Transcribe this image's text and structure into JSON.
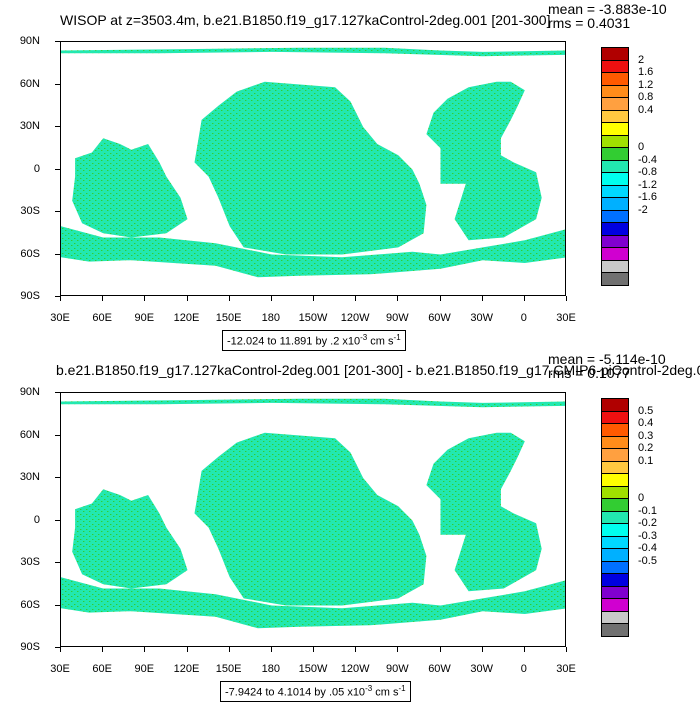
{
  "panels": [
    {
      "title": "WISOP at z=3503.4m, b.e21.B1850.f19_g17.127kaControl-2deg.001 [201-300]",
      "mean": "mean = -3.883e-10",
      "rms": "rms = 0.4031",
      "range_text": "-12.024 to 11.891 by .2 x10",
      "range_exp": "-3",
      "range_units": " cm s",
      "range_units_exp": "-1",
      "colorbar_labels": [
        "2",
        "1.6",
        "1.2",
        "0.8",
        "0.4",
        "0",
        "-0.4",
        "-0.8",
        "-1.2",
        "-1.6",
        "-2"
      ]
    },
    {
      "title": "b.e21.B1850.f19_g17.127kaControl-2deg.001 [201-300] - b.e21.B1850.f19_g17.CMIP6-piControl-2deg.0",
      "mean": "mean = -5.114e-10",
      "rms": "rms = 0.1077",
      "range_text": "-7.9424 to 4.1014 by .05 x10",
      "range_exp": "-3",
      "range_units": " cm s",
      "range_units_exp": "-1",
      "colorbar_labels": [
        "0.5",
        "0.4",
        "0.3",
        "0.2",
        "0.1",
        "0",
        "-0.1",
        "-0.2",
        "-0.3",
        "-0.4",
        "-0.5"
      ]
    }
  ],
  "lat_labels": [
    "90N",
    "60N",
    "30N",
    "0",
    "30S",
    "60S",
    "90S"
  ],
  "lon_labels": [
    "30E",
    "60E",
    "90E",
    "120E",
    "150E",
    "180",
    "150W",
    "120W",
    "90W",
    "60W",
    "30W",
    "0",
    "30E"
  ],
  "colorbar_colors": [
    "#b00000",
    "#ee1010",
    "#ff5a00",
    "#ff8c1a",
    "#ffa040",
    "#ffc840",
    "#ffff00",
    "#a0e000",
    "#32cd32",
    "#22e8b0",
    "#00ffee",
    "#00d8ff",
    "#00b0ff",
    "#0070ff",
    "#0000e0",
    "#8000d0",
    "#d000d0",
    "#c8c8c8",
    "#707070"
  ],
  "land_color": "#ffffff",
  "ocean_main_color": "#22e8b0",
  "ocean_speck_color": "#32cd32"
}
